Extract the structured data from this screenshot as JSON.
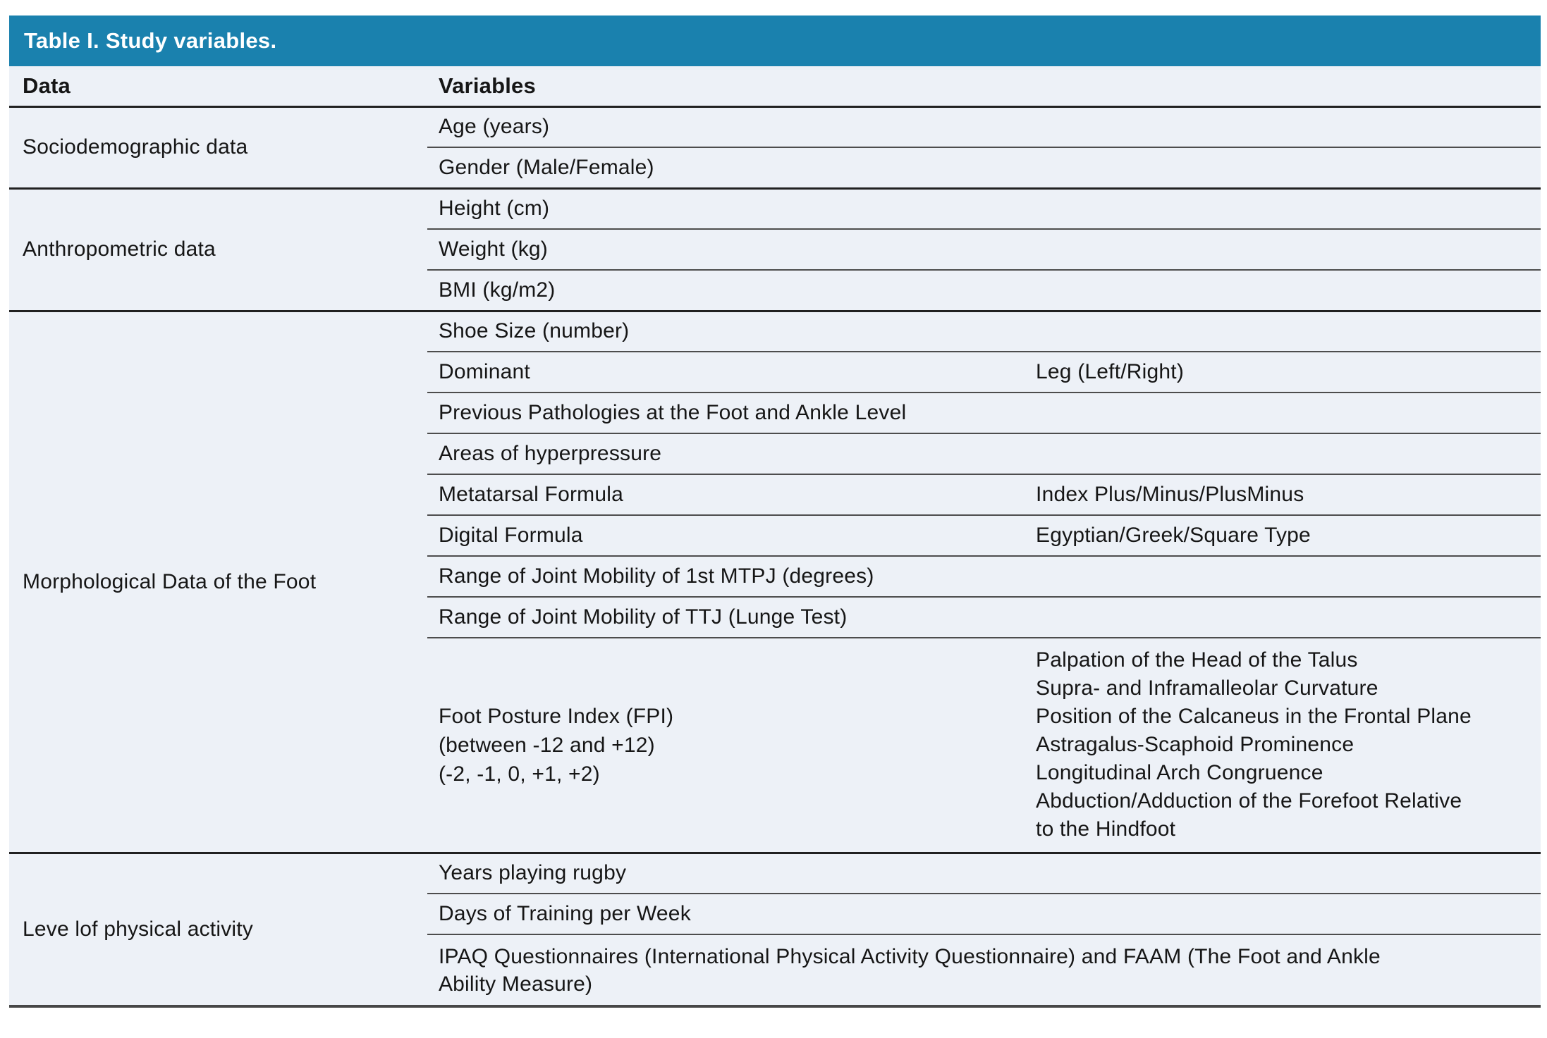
{
  "title": "Table I. Study variables.",
  "columns": {
    "data": "Data",
    "variables": "Variables"
  },
  "colors": {
    "header_bar": "#1a81ae",
    "table_background": "#edf1f7",
    "heavy_rule": "#212121",
    "light_rule": "#4d4d4d",
    "title_text": "#ffffff",
    "body_text": "#161616"
  },
  "groups": [
    {
      "label": "Sociodemographic data",
      "rows": [
        {
          "variable": "Age (years)"
        },
        {
          "variable": "Gender (Male/Female)"
        }
      ]
    },
    {
      "label": "Anthropometric data",
      "rows": [
        {
          "variable": "Height (cm)"
        },
        {
          "variable": "Weight (kg)"
        },
        {
          "variable": "BMI (kg/m2)"
        }
      ]
    },
    {
      "label": "Morphological Data of the Foot",
      "rows": [
        {
          "variable": "Shoe Size (number)"
        },
        {
          "variable": "Dominant",
          "detail": "Leg (Left/Right)"
        },
        {
          "variable": "Previous Pathologies at the Foot and Ankle Level"
        },
        {
          "variable": "Areas of hyperpressure"
        },
        {
          "variable": "Metatarsal Formula",
          "detail": "Index Plus/Minus/PlusMinus"
        },
        {
          "variable": "Digital Formula",
          "detail": "Egyptian/Greek/Square Type"
        },
        {
          "variable": "Range of Joint Mobility of 1st MTPJ (degrees)"
        },
        {
          "variable": "Range of Joint Mobility of TTJ (Lunge Test)"
        },
        {
          "variable": "Foot Posture Index (FPI)\n(between -12 and +12)\n(-2, -1, 0, +1, +2)",
          "detail": "Palpation of the Head of the Talus\nSupra- and Inframalleolar Curvature\nPosition of the Calcaneus in the Frontal Plane\nAstragalus-Scaphoid Prominence\nLongitudinal Arch Congruence\nAbduction/Adduction of the Forefoot Relative\nto the Hindfoot"
        }
      ]
    },
    {
      "label": "Leve lof physical activity",
      "rows": [
        {
          "variable": "Years playing rugby"
        },
        {
          "variable": "Days of Training per Week"
        },
        {
          "variable": "IPAQ Questionnaires (International Physical Activity Questionnaire) and FAAM (The Foot and Ankle\nAbility Measure)"
        }
      ]
    }
  ]
}
